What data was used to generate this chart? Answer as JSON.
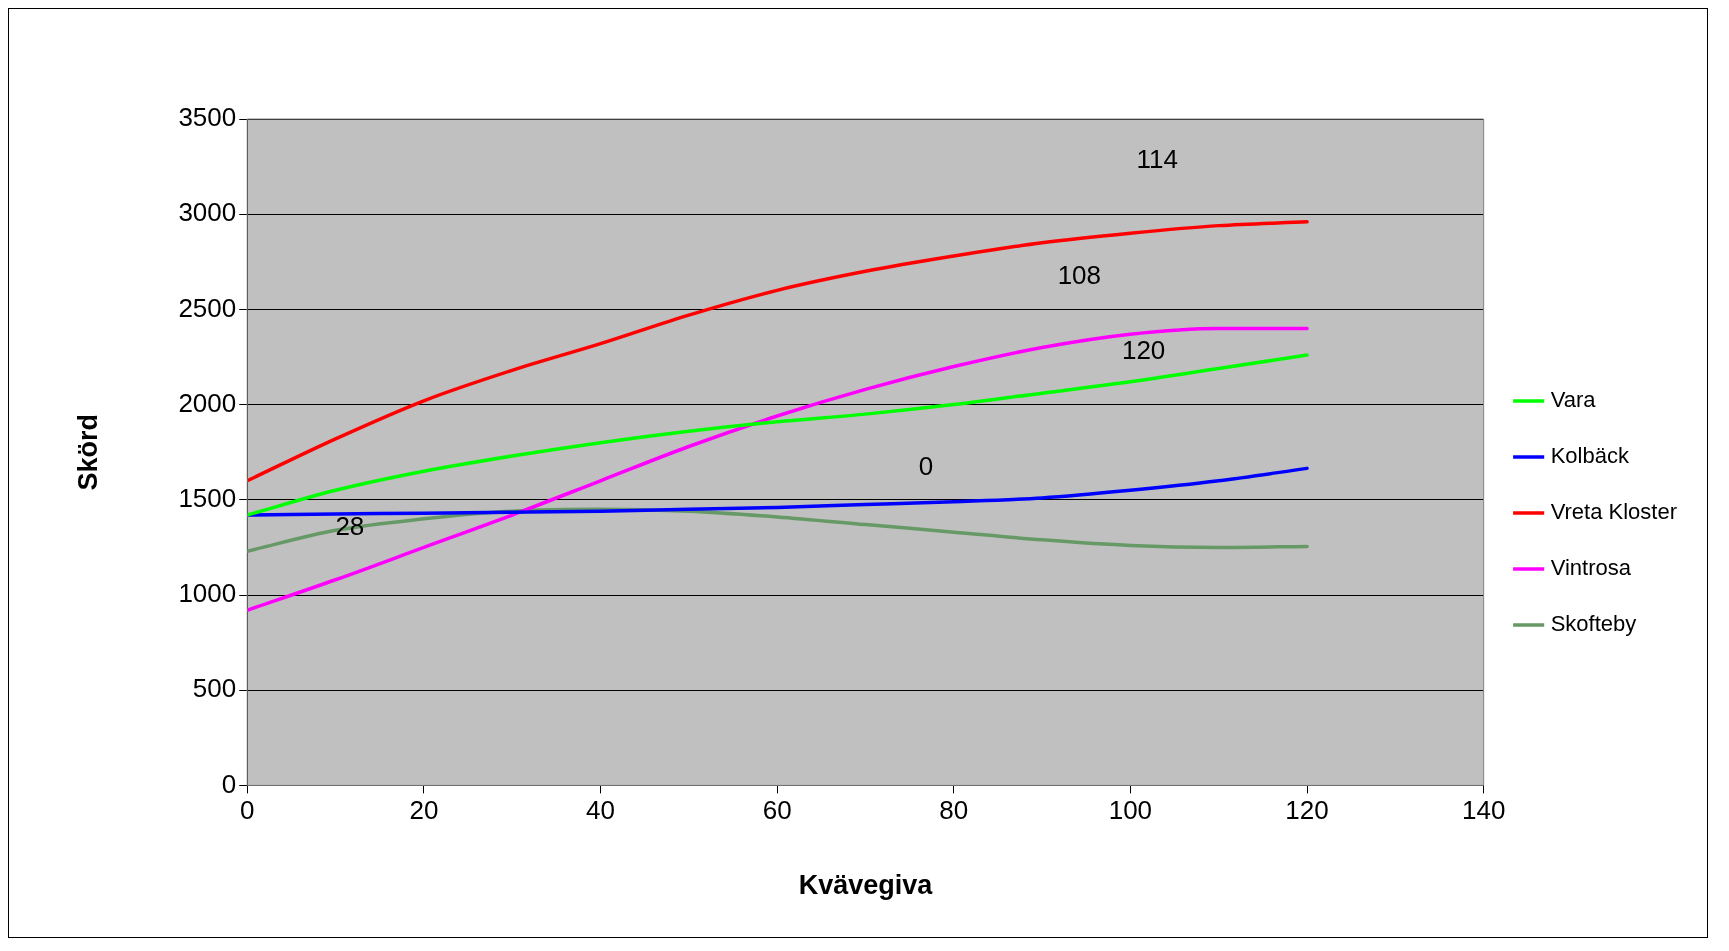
{
  "chart_data": {
    "type": "line",
    "xlabel": "Kvävegiva",
    "ylabel": "Skörd",
    "x": [
      0,
      10,
      20,
      30,
      40,
      50,
      60,
      70,
      80,
      90,
      100,
      110,
      120
    ],
    "series": [
      {
        "name": "Vara",
        "color": "#00ff00",
        "values": [
          1420,
          1550,
          1650,
          1730,
          1800,
          1860,
          1910,
          1950,
          2000,
          2060,
          2120,
          2190,
          2260
        ]
      },
      {
        "name": "Kolbäck",
        "color": "#0000ff",
        "values": [
          1420,
          1425,
          1430,
          1435,
          1440,
          1450,
          1460,
          1475,
          1490,
          1510,
          1550,
          1600,
          1665
        ]
      },
      {
        "name": "Vreta Kloster",
        "color": "#ff0000",
        "values": [
          1600,
          1820,
          2020,
          2180,
          2320,
          2470,
          2600,
          2700,
          2780,
          2850,
          2900,
          2940,
          2960
        ]
      },
      {
        "name": "Vintrosa",
        "color": "#ff00ff",
        "values": [
          920,
          1080,
          1250,
          1420,
          1600,
          1780,
          1940,
          2080,
          2200,
          2300,
          2370,
          2400,
          2400
        ]
      },
      {
        "name": "Skofteby",
        "color": "#669966",
        "values": [
          1230,
          1340,
          1400,
          1440,
          1450,
          1440,
          1410,
          1370,
          1330,
          1290,
          1260,
          1250,
          1255
        ]
      }
    ],
    "xlim": [
      0,
      140
    ],
    "xticks": [
      0,
      20,
      40,
      60,
      80,
      100,
      120,
      140
    ],
    "ylim": [
      0,
      3500
    ],
    "yticks": [
      0,
      500,
      1000,
      1500,
      2000,
      2500,
      3000,
      3500
    ],
    "grid": "y",
    "legend": "right",
    "marker": "none",
    "line_style": "solid",
    "annotations": [
      "114",
      "108",
      "120",
      "0",
      "28"
    ]
  }
}
